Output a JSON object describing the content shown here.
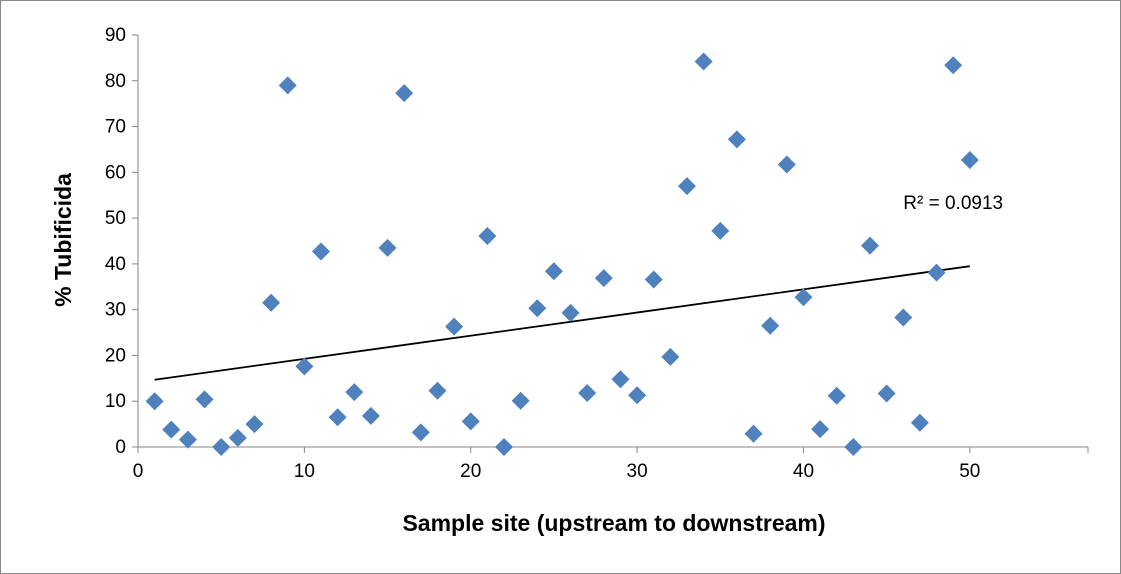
{
  "chart_data": {
    "type": "scatter",
    "title": "",
    "xlabel": "Sample site (upstream to downstream)",
    "ylabel": "% Tubificida",
    "xlim": [
      0,
      55
    ],
    "ylim": [
      0,
      90
    ],
    "xticks": [
      0,
      10,
      20,
      30,
      40,
      50
    ],
    "yticks": [
      0,
      10,
      20,
      30,
      40,
      50,
      60,
      70,
      80,
      90
    ],
    "grid": false,
    "legend": "none",
    "marker": "diamond",
    "marker_color": "#4f81bd",
    "series": [
      {
        "x": [
          1,
          2,
          3,
          4,
          5,
          6,
          7,
          8,
          9,
          10,
          11,
          12,
          13,
          14,
          15,
          16,
          17,
          18,
          19,
          20,
          21,
          22,
          23,
          24,
          25,
          26,
          27,
          28,
          29,
          30,
          31,
          32,
          33,
          34,
          35,
          36,
          37,
          38,
          39,
          40,
          41,
          42,
          43,
          44,
          45,
          46,
          47,
          48,
          49,
          50
        ],
        "y": [
          10,
          3.8,
          1.6,
          10.4,
          0,
          2,
          5,
          31.5,
          79,
          17.6,
          42.7,
          6.5,
          12,
          6.8,
          43.5,
          77.3,
          3.2,
          12.3,
          26.3,
          5.6,
          46.1,
          0,
          10.1,
          30.3,
          38.4,
          29.3,
          11.8,
          36.9,
          14.8,
          11.3,
          36.6,
          19.7,
          57,
          84.2,
          47.2,
          67.2,
          2.9,
          26.5,
          61.7,
          32.7,
          3.9,
          11.2,
          0,
          44,
          11.7,
          28.3,
          5.3,
          38.1,
          83.4,
          62.7
        ]
      }
    ],
    "trendline": {
      "type": "linear",
      "x": [
        1,
        50
      ],
      "y": [
        14.7,
        39.5
      ],
      "color": "#000000"
    },
    "annotations": [
      {
        "text": "R² = 0.0913",
        "x": 49,
        "y": 53.5
      }
    ]
  }
}
